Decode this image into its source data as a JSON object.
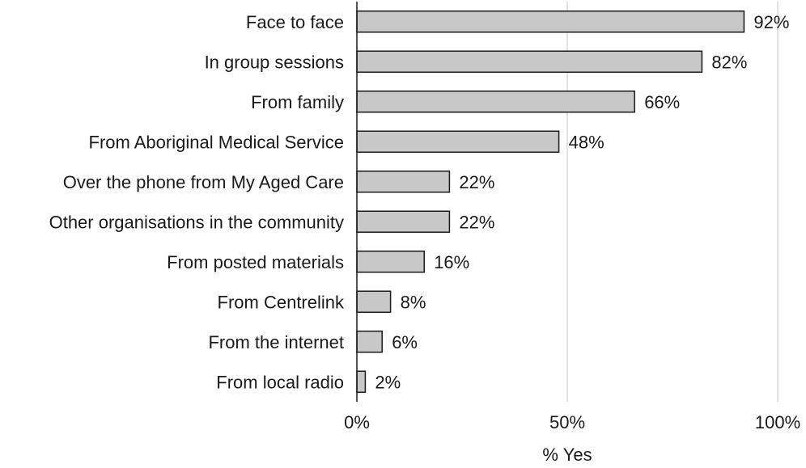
{
  "chart_data": {
    "type": "bar",
    "orientation": "horizontal",
    "categories": [
      "Face to face",
      "In group sessions",
      "From family",
      "From Aboriginal Medical Service",
      "Over the phone from My Aged Care",
      "Other organisations in the community",
      "From posted materials",
      "From Centrelink",
      "From the internet",
      "From local radio"
    ],
    "values": [
      92,
      82,
      66,
      48,
      22,
      22,
      16,
      8,
      6,
      2
    ],
    "value_labels": [
      "92%",
      "82%",
      "66%",
      "48%",
      "22%",
      "22%",
      "16%",
      "8%",
      "6%",
      "2%"
    ],
    "xlabel": "% Yes",
    "xlim": [
      0,
      100
    ],
    "xticks": [
      0,
      50,
      100
    ],
    "xtick_labels": [
      "0%",
      "50%",
      "100%"
    ],
    "grid": true,
    "colors": {
      "bar_fill": "#c8c8c8",
      "bar_stroke": "#1a1a1a",
      "gridline": "#d9d9d9",
      "axis": "#1a1a1a"
    }
  }
}
